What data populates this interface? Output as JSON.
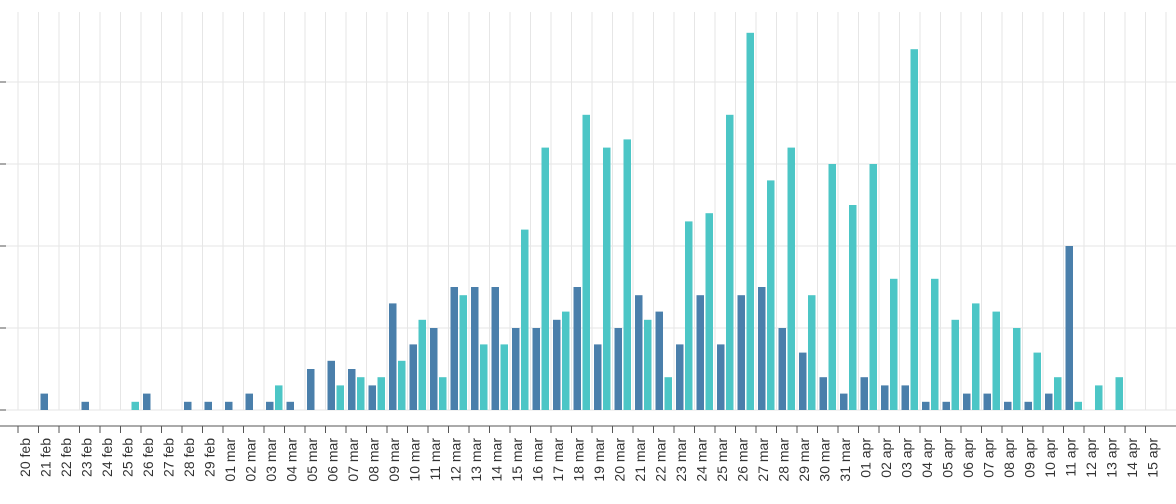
{
  "colors": {
    "teal": "#4cc6c6",
    "blue": "#4a7fab",
    "grid": "#e6e6e6",
    "axis": "#555555"
  },
  "chart_data": {
    "type": "bar",
    "title": "",
    "xlabel": "",
    "ylabel": "",
    "ylim": [
      0,
      23
    ],
    "y_ticks": [
      0,
      5,
      10,
      15,
      20
    ],
    "grid": true,
    "categories": [
      "20 feb",
      "21 feb",
      "22 feb",
      "23 feb",
      "24 feb",
      "25 feb",
      "26 feb",
      "27 feb",
      "28 feb",
      "29 feb",
      "01 mar",
      "02 mar",
      "03 mar",
      "04 mar",
      "05 mar",
      "06 mar",
      "07 mar",
      "08 mar",
      "09 mar",
      "10 mar",
      "11 mar",
      "12 mar",
      "13 mar",
      "14 mar",
      "15 mar",
      "16 mar",
      "17 mar",
      "18 mar",
      "19 mar",
      "20 mar",
      "21 mar",
      "22 mar",
      "23 mar",
      "24 mar",
      "25 mar",
      "26 mar",
      "27 mar",
      "28 mar",
      "29 mar",
      "30 mar",
      "31 mar",
      "01 apr",
      "02 apr",
      "03 apr",
      "04 apr",
      "05 apr",
      "06 apr",
      "07 apr",
      "08 apr",
      "09 apr",
      "10 apr",
      "11 apr",
      "12 apr",
      "13 apr",
      "14 apr",
      "15 apr"
    ],
    "series": [
      {
        "color": "blue",
        "values": [
          0,
          1,
          0,
          0.5,
          0,
          0,
          1,
          0,
          0.5,
          0.5,
          0.5,
          1,
          0.5,
          0.5,
          2.5,
          3,
          2.5,
          1.5,
          6.5,
          4,
          5,
          7.5,
          7.5,
          7.5,
          5,
          5,
          5.5,
          7.5,
          4,
          5,
          7,
          6,
          4,
          7,
          4,
          7,
          7.5,
          5,
          3.5,
          2,
          1,
          2,
          1.5,
          1.5,
          0.5,
          0.5,
          1,
          1,
          0.5,
          0.5,
          1,
          10,
          0,
          0,
          0,
          0
        ]
      },
      {
        "color": "teal",
        "values": [
          0,
          0,
          0,
          0,
          0,
          0.5,
          0,
          0,
          0,
          0,
          0,
          0,
          1.5,
          0,
          0,
          1.5,
          2,
          2,
          3,
          5.5,
          2,
          7,
          4,
          4,
          11,
          16,
          6,
          18,
          16,
          16.5,
          5.5,
          2,
          11.5,
          12,
          18,
          23,
          14,
          16,
          7,
          15,
          12.5,
          15,
          8,
          22,
          8,
          5.5,
          6.5,
          6,
          5,
          3.5,
          2,
          0.5,
          1.5,
          2,
          0,
          0
        ]
      }
    ]
  }
}
